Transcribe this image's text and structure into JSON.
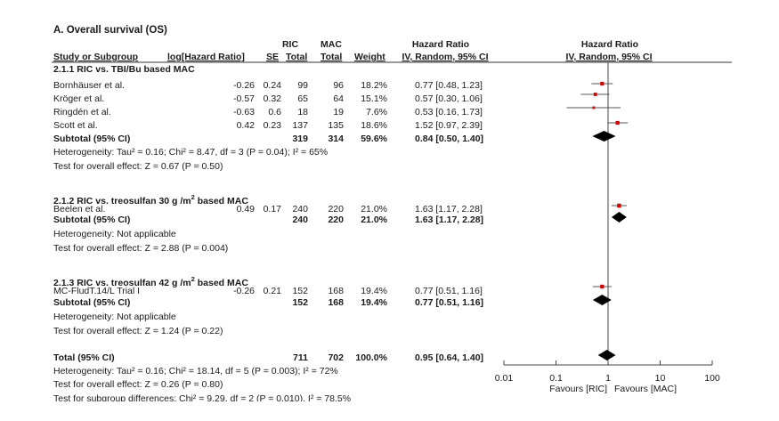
{
  "title": "A. Overall survival (OS)",
  "headers": {
    "study": "Study or Subgroup",
    "loghr": "log[Hazard Ratio]",
    "se": "SE",
    "ric": "RIC",
    "mac": "MAC",
    "total_ric": "Total",
    "total_mac": "Total",
    "weight": "Weight",
    "hr1": "Hazard Ratio",
    "hr1_sub": "IV, Random, 95% CI",
    "hr2": "Hazard Ratio",
    "hr2_sub": "IV, Random, 95% CI"
  },
  "groups": [
    {
      "label": "2.1.1 RIC vs. TBI/Bu based MAC",
      "label_sup": "",
      "label_tail": "",
      "studies": [
        {
          "name": "Bornhäuser et al.",
          "loghr": "-0.26",
          "se": "0.24",
          "ric": "99",
          "mac": "96",
          "weight": "18.2%",
          "ci": "0.77 [0.48, 1.23]"
        },
        {
          "name": "Kröger et al.",
          "loghr": "-0.57",
          "se": "0.32",
          "ric": "65",
          "mac": "64",
          "weight": "15.1%",
          "ci": "0.57 [0.30, 1.06]"
        },
        {
          "name": "Ringdén et al.",
          "loghr": "-0.63",
          "se": "0.6",
          "ric": "18",
          "mac": "19",
          "weight": "7.6%",
          "ci": "0.53 [0.16, 1.73]"
        },
        {
          "name": "Scott et al.",
          "loghr": "0.42",
          "se": "0.23",
          "ric": "137",
          "mac": "135",
          "weight": "18.6%",
          "ci": "1.52 [0.97, 2.39]"
        }
      ],
      "subtotal": {
        "label": "Subtotal (95% CI)",
        "ric": "319",
        "mac": "314",
        "weight": "59.6%",
        "ci": "0.84 [0.50, 1.40]"
      },
      "heterogeneity": "Heterogeneity: Tau² = 0.16; Chi² = 8.47, df = 3 (P = 0.04); I² = 65%",
      "effect": "Test for overall effect: Z = 0.67 (P = 0.50)"
    },
    {
      "label": "2.1.2 RIC vs. treosulfan 30 g /m",
      "label_sup": "2",
      "label_tail": " based MAC",
      "studies": [
        {
          "name": "Beelen et al.",
          "loghr": "0.49",
          "se": "0.17",
          "ric": "240",
          "mac": "220",
          "weight": "21.0%",
          "ci": "1.63 [1.17, 2.28]"
        }
      ],
      "subtotal": {
        "label": "Subtotal (95% CI)",
        "ric": "240",
        "mac": "220",
        "weight": "21.0%",
        "ci": "1.63 [1.17, 2.28]"
      },
      "heterogeneity": "Heterogeneity: Not applicable",
      "effect": "Test for overall effect: Z = 2.88 (P = 0.004)"
    },
    {
      "label": "2.1.3 RIC vs. treosulfan 42 g /m",
      "label_sup": "2",
      "label_tail": " based MAC",
      "studies": [
        {
          "name": "MC-FludT.14/L Trial I",
          "loghr": "-0.26",
          "se": "0.21",
          "ric": "152",
          "mac": "168",
          "weight": "19.4%",
          "ci": "0.77 [0.51, 1.16]"
        }
      ],
      "subtotal": {
        "label": "Subtotal (95% CI)",
        "ric": "152",
        "mac": "168",
        "weight": "19.4%",
        "ci": "0.77 [0.51, 1.16]"
      },
      "heterogeneity": "Heterogeneity: Not applicable",
      "effect": "Test for overall effect: Z = 1.24 (P = 0.22)"
    }
  ],
  "total": {
    "label": "Total (95% CI)",
    "ric": "711",
    "mac": "702",
    "weight": "100.0%",
    "ci": "0.95 [0.64, 1.40]"
  },
  "total_heterogeneity": "Heterogeneity: Tau² = 0.16; Chi² = 18.14, df = 5 (P = 0.003); I² = 72%",
  "total_effect": "Test for overall effect: Z = 0.26 (P = 0.80)",
  "subgroup_test": "Test for subgroup differences: Chi² = 9.29, df = 2 (P = 0.010), I² = 78.5%",
  "axis": {
    "ticks": [
      "0.01",
      "0.1",
      "1",
      "10",
      "100"
    ],
    "favours_left": "Favours [RIC]",
    "favours_right": "Favours [MAC]"
  },
  "colors": {
    "marker": "#e00000",
    "diamond": "#000000",
    "line": "#555555"
  },
  "chart_data": {
    "type": "scatter",
    "scale": "log",
    "xlim": [
      0.01,
      100
    ],
    "reference_line": 1,
    "studies": [
      {
        "name": "Bornhäuser et al.",
        "hr": 0.77,
        "lo": 0.48,
        "hi": 1.23,
        "weight": 18.2
      },
      {
        "name": "Kröger et al.",
        "hr": 0.57,
        "lo": 0.3,
        "hi": 1.06,
        "weight": 15.1
      },
      {
        "name": "Ringdén et al.",
        "hr": 0.53,
        "lo": 0.16,
        "hi": 1.73,
        "weight": 7.6
      },
      {
        "name": "Scott et al.",
        "hr": 1.52,
        "lo": 0.97,
        "hi": 2.39,
        "weight": 18.6
      },
      {
        "name": "Beelen et al.",
        "hr": 1.63,
        "lo": 1.17,
        "hi": 2.28,
        "weight": 21.0
      },
      {
        "name": "MC-FludT.14/L Trial I",
        "hr": 0.77,
        "lo": 0.51,
        "hi": 1.16,
        "weight": 19.4
      }
    ],
    "diamonds": [
      {
        "name": "Subtotal 2.1.1",
        "hr": 0.84,
        "lo": 0.5,
        "hi": 1.4
      },
      {
        "name": "Subtotal 2.1.2",
        "hr": 1.63,
        "lo": 1.17,
        "hi": 2.28
      },
      {
        "name": "Subtotal 2.1.3",
        "hr": 0.77,
        "lo": 0.51,
        "hi": 1.16
      },
      {
        "name": "Total",
        "hr": 0.95,
        "lo": 0.64,
        "hi": 1.4
      }
    ]
  }
}
